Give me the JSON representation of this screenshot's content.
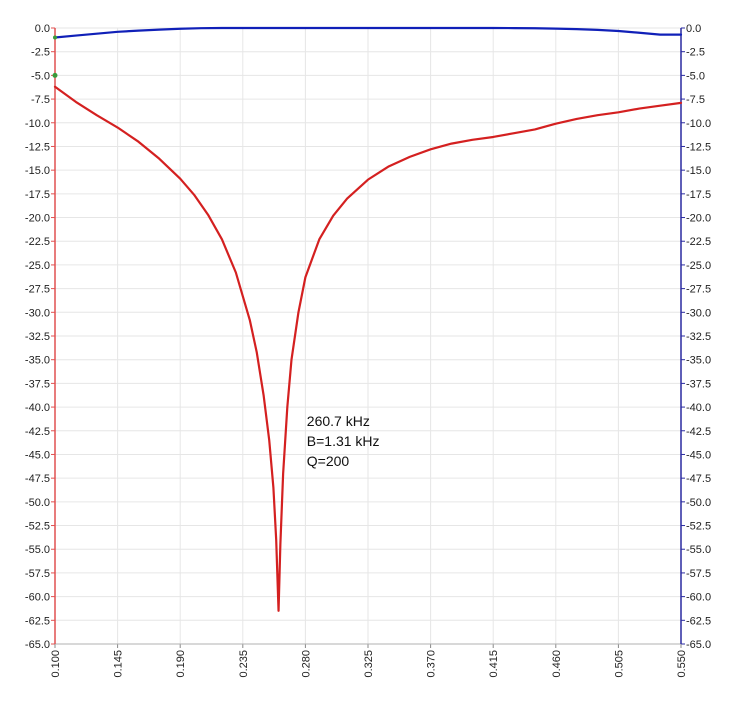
{
  "chart_data": {
    "type": "line",
    "title": "",
    "xlabel": "",
    "ylabel": "",
    "xlim": [
      0.1,
      0.55
    ],
    "ylim": [
      -65.0,
      0.0
    ],
    "y2lim": [
      -65.0,
      0.0
    ],
    "grid": true,
    "x_ticks": [
      "0.100",
      "0.145",
      "0.190",
      "0.235",
      "0.280",
      "0.325",
      "0.370",
      "0.415",
      "0.460",
      "0.505",
      "0.550"
    ],
    "y_ticks": [
      "0.0",
      "-2.5",
      "-5.0",
      "-7.5",
      "-10.0",
      "-12.5",
      "-15.0",
      "-17.5",
      "-20.0",
      "-22.5",
      "-25.0",
      "-27.5",
      "-30.0",
      "-32.5",
      "-35.0",
      "-37.5",
      "-40.0",
      "-42.5",
      "-45.0",
      "-47.5",
      "-50.0",
      "-52.5",
      "-55.0",
      "-57.5",
      "-60.0",
      "-62.5",
      "-65.0"
    ],
    "y2_ticks": [
      "0.0",
      "-2.5",
      "-5.0",
      "-7.5",
      "-10.0",
      "-12.5",
      "-15.0",
      "-17.5",
      "-20.0",
      "-22.5",
      "-25.0",
      "-27.5",
      "-30.0",
      "-32.5",
      "-35.0",
      "-37.5",
      "-40.0",
      "-42.5",
      "-45.0",
      "-47.5",
      "-50.0",
      "-52.5",
      "-55.0",
      "-57.5",
      "-60.0",
      "-62.5",
      "-65.0"
    ],
    "series": [
      {
        "axis": "left",
        "color": "#d42020",
        "points": [
          [
            0.1,
            -6.2
          ],
          [
            0.115,
            -7.8
          ],
          [
            0.13,
            -9.2
          ],
          [
            0.145,
            -10.5
          ],
          [
            0.16,
            -12.0
          ],
          [
            0.175,
            -13.8
          ],
          [
            0.19,
            -15.9
          ],
          [
            0.2,
            -17.6
          ],
          [
            0.21,
            -19.7
          ],
          [
            0.22,
            -22.3
          ],
          [
            0.23,
            -25.8
          ],
          [
            0.24,
            -30.8
          ],
          [
            0.245,
            -34.2
          ],
          [
            0.25,
            -38.8
          ],
          [
            0.254,
            -43.5
          ],
          [
            0.257,
            -48.5
          ],
          [
            0.259,
            -54.0
          ],
          [
            0.2607,
            -61.5
          ],
          [
            0.262,
            -54.5
          ],
          [
            0.264,
            -47.0
          ],
          [
            0.267,
            -40.0
          ],
          [
            0.27,
            -35.0
          ],
          [
            0.275,
            -30.0
          ],
          [
            0.28,
            -26.3
          ],
          [
            0.29,
            -22.3
          ],
          [
            0.3,
            -19.8
          ],
          [
            0.31,
            -18.0
          ],
          [
            0.325,
            -16.0
          ],
          [
            0.34,
            -14.6
          ],
          [
            0.355,
            -13.6
          ],
          [
            0.37,
            -12.8
          ],
          [
            0.385,
            -12.2
          ],
          [
            0.4,
            -11.8
          ],
          [
            0.415,
            -11.5
          ],
          [
            0.43,
            -11.1
          ],
          [
            0.445,
            -10.7
          ],
          [
            0.46,
            -10.1
          ],
          [
            0.475,
            -9.6
          ],
          [
            0.49,
            -9.2
          ],
          [
            0.505,
            -8.9
          ],
          [
            0.52,
            -8.5
          ],
          [
            0.535,
            -8.2
          ],
          [
            0.55,
            -7.9
          ]
        ]
      },
      {
        "axis": "right",
        "color": "#1020b8",
        "points": [
          [
            0.1,
            -1.0
          ],
          [
            0.115,
            -0.8
          ],
          [
            0.13,
            -0.6
          ],
          [
            0.145,
            -0.4
          ],
          [
            0.16,
            -0.28
          ],
          [
            0.175,
            -0.17
          ],
          [
            0.19,
            -0.08
          ],
          [
            0.205,
            -0.02
          ],
          [
            0.22,
            0.0
          ],
          [
            0.415,
            0.0
          ],
          [
            0.43,
            -0.01
          ],
          [
            0.445,
            -0.03
          ],
          [
            0.46,
            -0.07
          ],
          [
            0.475,
            -0.12
          ],
          [
            0.49,
            -0.2
          ],
          [
            0.505,
            -0.32
          ],
          [
            0.52,
            -0.5
          ],
          [
            0.535,
            -0.7
          ],
          [
            0.55,
            -0.7
          ]
        ]
      }
    ],
    "annotations": [
      {
        "text": "260.7 kHz",
        "x": 0.281,
        "y": -42.0
      },
      {
        "text": "B=1.31 kHz",
        "x": 0.281,
        "y": -44.1
      },
      {
        "text": "Q=200",
        "x": 0.281,
        "y": -46.2
      }
    ],
    "colors": {
      "left_axis": "#e05050",
      "right_axis": "#2a2aa0",
      "grid": "#e6e6e6",
      "marker_green": "#3a9a3a"
    }
  }
}
